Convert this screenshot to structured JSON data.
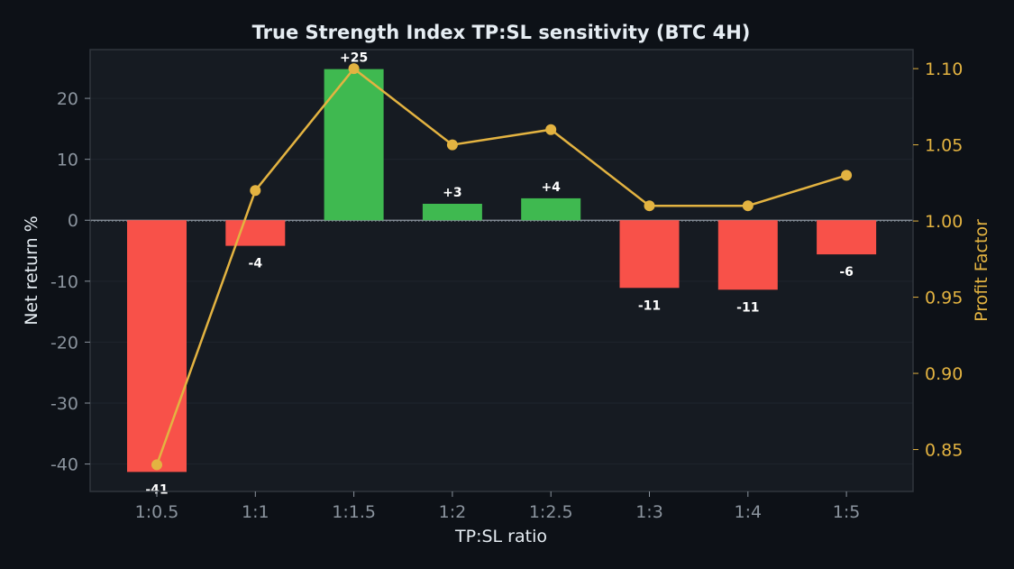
{
  "chart_data": {
    "type": "bar",
    "title": "True Strength Index TP:SL sensitivity (BTC 4H)",
    "xlabel": "TP:SL ratio",
    "ylabel": "Net return %",
    "y2label": "Profit Factor",
    "categories": [
      "1:0.5",
      "1:1",
      "1:1.5",
      "1:2",
      "1:2.5",
      "1:3",
      "1:4",
      "1:5"
    ],
    "series": [
      {
        "axis": "left",
        "kind": "bar",
        "values": [
          -41.3,
          -4.2,
          24.8,
          2.7,
          3.6,
          -11.1,
          -11.4,
          -5.6
        ],
        "labels": [
          "-41",
          "-4",
          "+25",
          "+3",
          "+4",
          "-11",
          "-11",
          "-6"
        ]
      },
      {
        "axis": "right",
        "kind": "line",
        "values": [
          0.84,
          1.02,
          1.1,
          1.05,
          1.06,
          1.01,
          1.01,
          1.03
        ]
      }
    ],
    "ylim": [
      -44.5,
      28
    ],
    "yticks": [
      -40,
      -30,
      -20,
      -10,
      0,
      10,
      20
    ],
    "ytick_labels": [
      "-40",
      "-30",
      "-20",
      "-10",
      "0",
      "10",
      "20"
    ],
    "y2lim": [
      0.8225,
      1.1125
    ],
    "y2ticks": [
      0.85,
      0.9,
      0.95,
      1.0,
      1.05,
      1.1
    ],
    "y2tick_labels": [
      "0.85",
      "0.90",
      "0.95",
      "1.00",
      "1.05",
      "1.10"
    ],
    "grid": true,
    "colors": {
      "positive": "#3fb950",
      "negative": "#f85149",
      "line": "#e3b341",
      "background": "#0d1117",
      "plot_background": "#161b22",
      "text": "#e6edf3",
      "tick_text": "#8b949e",
      "axis_frame": "#30363d"
    }
  }
}
